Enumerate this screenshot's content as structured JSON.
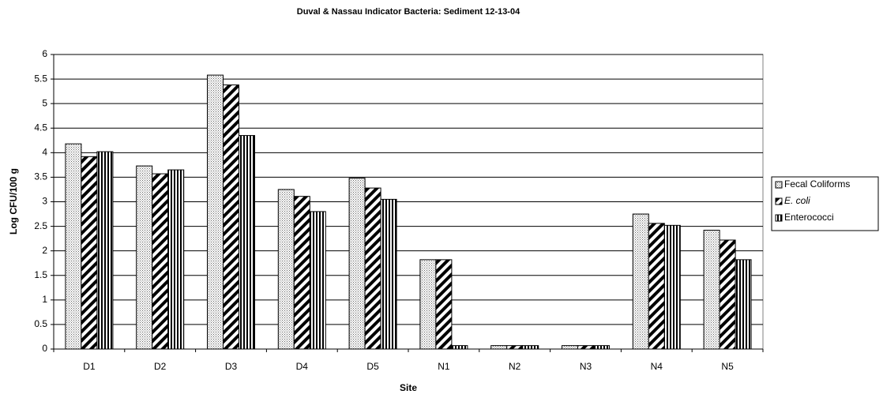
{
  "chart_data": {
    "type": "bar",
    "title": "Duval & Nassau Indicator Bacteria: Sediment 12-13-04",
    "x_label": "Site",
    "y_label": "Log CFU/100 g",
    "categories": [
      "D1",
      "D2",
      "D3",
      "D4",
      "D5",
      "N1",
      "N2",
      "N3",
      "N4",
      "N5"
    ],
    "series": [
      {
        "name": "Fecal Coliforms",
        "color": "#000000",
        "pattern": "dots",
        "values": [
          4.18,
          3.73,
          5.58,
          3.25,
          3.48,
          1.82,
          0.07,
          0.07,
          2.75,
          2.42
        ]
      },
      {
        "name": "E. coli",
        "color": "#000000",
        "pattern": "diagonal",
        "values": [
          3.92,
          3.57,
          5.38,
          3.11,
          3.28,
          1.82,
          0.07,
          0.07,
          2.56,
          2.22
        ]
      },
      {
        "name": "Enterococci",
        "color": "#000000",
        "pattern": "vertical",
        "values": [
          4.02,
          3.65,
          4.35,
          2.8,
          3.05,
          0.07,
          0.07,
          0.07,
          2.52,
          1.82
        ]
      }
    ],
    "ylim": [
      0,
      6
    ],
    "yticks": [
      0,
      0.5,
      1,
      1.5,
      2,
      2.5,
      3,
      3.5,
      4,
      4.5,
      5,
      5.5,
      6
    ],
    "grid": true,
    "legend": "right"
  }
}
